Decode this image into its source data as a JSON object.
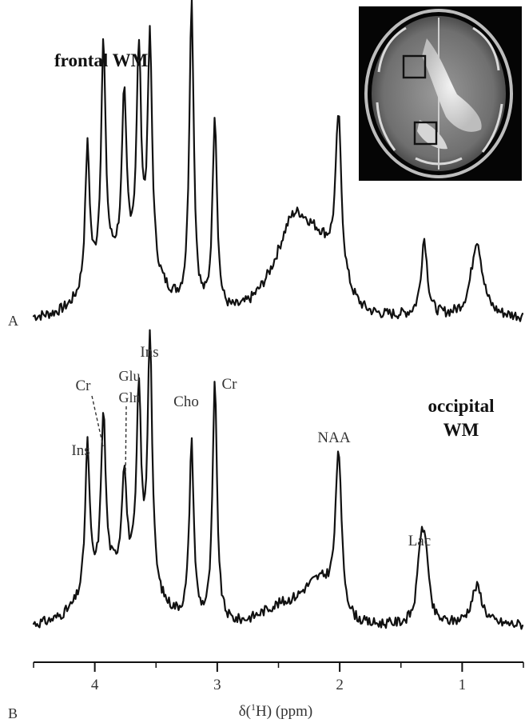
{
  "chart_data": [
    {
      "type": "line",
      "panel_label": "A",
      "title": "frontal WM",
      "x_axis_reversed": true,
      "x_unit": "ppm",
      "peaks": [
        {
          "ppm": 4.06,
          "height": 0.46
        },
        {
          "ppm": 3.93,
          "height": 0.74
        },
        {
          "ppm": 3.76,
          "height": 0.52
        },
        {
          "ppm": 3.64,
          "height": 0.68
        },
        {
          "ppm": 3.55,
          "height": 0.75
        },
        {
          "ppm": 3.21,
          "height": 1.0
        },
        {
          "ppm": 3.02,
          "height": 0.64
        },
        {
          "ppm": 2.38,
          "height": 0.2
        },
        {
          "ppm": 2.01,
          "height": 0.51
        },
        {
          "ppm": 1.31,
          "height": 0.25
        },
        {
          "ppm": 0.88,
          "height": 0.25
        }
      ]
    },
    {
      "type": "line",
      "panel_label": "B",
      "title_lines": [
        "occipital",
        "WM"
      ],
      "xlabel_prefix": "δ(",
      "xlabel_sup": "1",
      "xlabel_suffix": "H) (ppm)",
      "x_axis_reversed": true,
      "xlim": [
        4.5,
        0.5
      ],
      "xticks": [
        {
          "value": 4,
          "label": "4"
        },
        {
          "value": 3,
          "label": "3"
        },
        {
          "value": 2,
          "label": "2"
        },
        {
          "value": 1,
          "label": "1"
        }
      ],
      "peaks": [
        {
          "ppm": 4.06,
          "label": "Ins",
          "height": 0.58
        },
        {
          "ppm": 3.93,
          "label": "Cr",
          "height": 0.65
        },
        {
          "ppm": 3.76,
          "label": "Glu\nGln",
          "height": 0.4
        },
        {
          "ppm": 3.64,
          "height": 0.73
        },
        {
          "ppm": 3.55,
          "label": "Ins",
          "height": 1.0
        },
        {
          "ppm": 3.21,
          "label": "Cho",
          "height": 0.69
        },
        {
          "ppm": 3.02,
          "label": "Cr",
          "height": 0.93
        },
        {
          "ppm": 2.01,
          "label": "NAA",
          "height": 0.61
        },
        {
          "ppm": 1.34,
          "label": "Lac",
          "height": 0.26
        },
        {
          "ppm": 1.3,
          "height": 0.26
        },
        {
          "ppm": 0.88,
          "height": 0.15
        }
      ]
    }
  ],
  "inset": {
    "type": "axial T2-weighted MRI image",
    "voxels": [
      "frontal WM",
      "occipital WM"
    ]
  }
}
